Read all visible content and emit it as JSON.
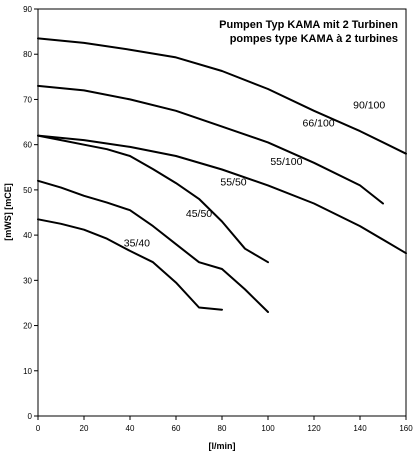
{
  "chart_data": {
    "type": "line",
    "title": "Pumpen Typ KAMA mit 2 Turbinen",
    "subtitle": "pompes type KAMA à 2 turbines",
    "xlabel": "[l/min]",
    "ylabel": "[mWS]  [mCE]",
    "xlim": [
      0,
      160
    ],
    "ylim": [
      0,
      90
    ],
    "x_ticks": [
      "0",
      "20",
      "40",
      "60",
      "80",
      "100",
      "120",
      "140",
      "160"
    ],
    "y_ticks": [
      "0",
      "10",
      "20",
      "30",
      "40",
      "50",
      "60",
      "70",
      "80",
      "90"
    ],
    "grid": false,
    "legend": "none",
    "line_color": "#000000",
    "series": [
      {
        "name": "35/40",
        "x": [
          0,
          10,
          20,
          30,
          40,
          50,
          60,
          70,
          80
        ],
        "y": [
          43.5,
          42.5,
          41.2,
          39.2,
          36.5,
          34.0,
          29.5,
          24.0,
          23.5
        ],
        "label_at": [
          43,
          37.5
        ]
      },
      {
        "name": "45/50",
        "x": [
          0,
          10,
          20,
          30,
          40,
          50,
          60,
          70,
          80,
          90,
          100
        ],
        "y": [
          52,
          50.5,
          48.7,
          47.2,
          45.5,
          42,
          38,
          34,
          32.5,
          28,
          23
        ],
        "label_at": [
          70,
          44
        ]
      },
      {
        "name": "55/50",
        "x": [
          0,
          10,
          20,
          30,
          40,
          50,
          60,
          70,
          80,
          90,
          100
        ],
        "y": [
          62,
          61,
          60,
          59,
          57.5,
          54.6,
          51.5,
          48,
          43,
          37,
          34
        ],
        "label_at": [
          85,
          51
        ]
      },
      {
        "name": "55/100",
        "x": [
          0,
          20,
          40,
          60,
          80,
          100,
          120,
          140,
          160
        ],
        "y": [
          62,
          61,
          59.5,
          57.5,
          54.5,
          51,
          47,
          42,
          36
        ],
        "label_at": [
          108,
          55.5
        ]
      },
      {
        "name": "66/100",
        "x": [
          0,
          20,
          40,
          60,
          80,
          100,
          120,
          140,
          150
        ],
        "y": [
          73,
          72,
          70,
          67.5,
          64,
          60.5,
          56,
          51,
          47
        ],
        "label_at": [
          122,
          64
        ]
      },
      {
        "name": "90/100",
        "x": [
          0,
          20,
          40,
          60,
          80,
          100,
          120,
          140,
          160
        ],
        "y": [
          83.5,
          82.5,
          81,
          79.3,
          76.3,
          72.3,
          67.5,
          63,
          58
        ],
        "label_at": [
          144,
          68
        ]
      }
    ]
  }
}
